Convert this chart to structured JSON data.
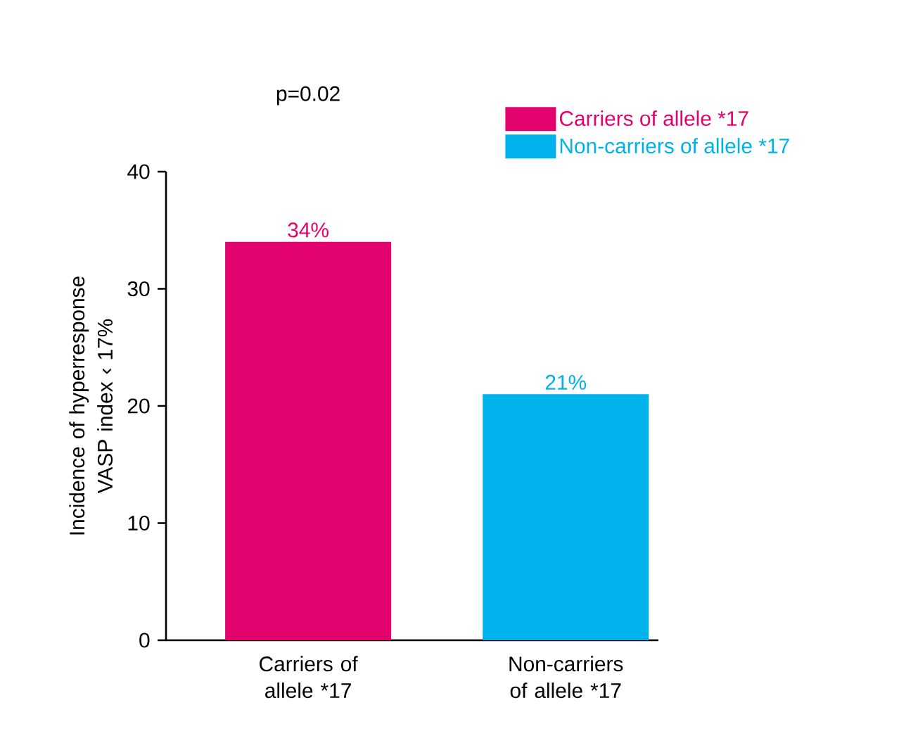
{
  "chart_data": {
    "type": "bar",
    "annotations": [
      "p=0.02"
    ],
    "ylabel": "Incidence of hyperresponse VASP index ‹ 17%",
    "categories": [
      "Carriers of allele *17",
      "Non-carriers of allele *17"
    ],
    "series": [
      {
        "name": "Carriers of allele *17",
        "color": "#e2036f",
        "values": [
          34,
          null
        ],
        "value_labels": [
          "34%",
          null
        ]
      },
      {
        "name": "Non-carriers of allele *17",
        "color": "#00b2ec",
        "values": [
          null,
          21
        ],
        "value_labels": [
          null,
          "21%"
        ]
      }
    ],
    "ylim": [
      0,
      40
    ],
    "yticks": [
      0,
      10,
      20,
      30,
      40
    ],
    "legend": "top right"
  }
}
